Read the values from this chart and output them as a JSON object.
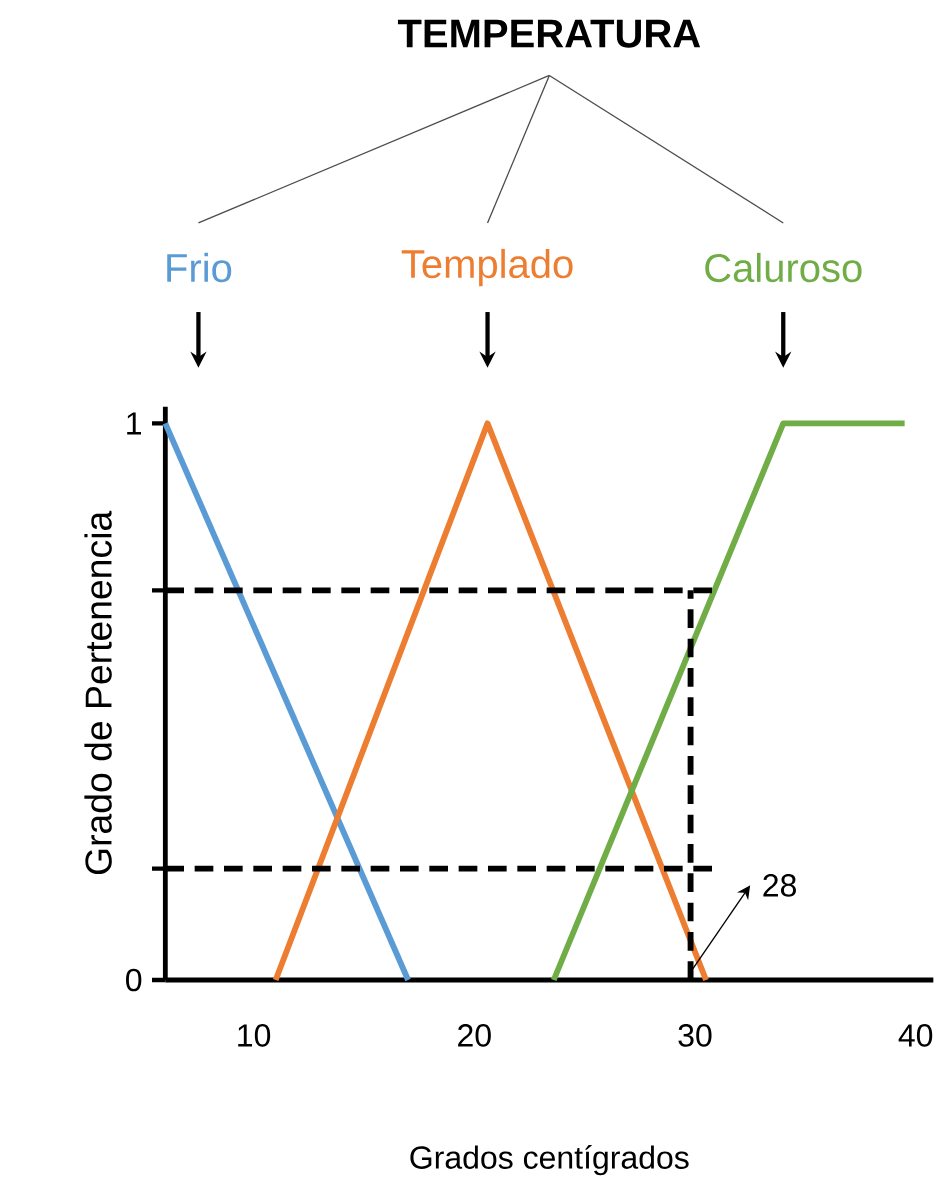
{
  "chart_data": {
    "type": "line",
    "title": "TEMPERATURA",
    "xlabel": "Grados centígrados",
    "ylabel": "Grado de Pertenencia",
    "xlim": [
      6,
      40.8
    ],
    "xticks": [
      10,
      20,
      30,
      40
    ],
    "ylim": [
      0,
      1.03
    ],
    "yticks": [
      0,
      {
        "value": 0.2,
        "label": null
      },
      {
        "value": 0.7,
        "label": null
      },
      1
    ],
    "marker": "none",
    "series": [
      {
        "name": "Frio",
        "color": "#5b9bd5",
        "x": [
          6,
          17
        ],
        "values": [
          1,
          0
        ]
      },
      {
        "name": "Templado",
        "color": "#ed7d31",
        "x": [
          11,
          20.6,
          30.5
        ],
        "values": [
          0,
          1,
          0
        ]
      },
      {
        "name": "Caluroso",
        "color": "#70ad47",
        "x": [
          23.6,
          34,
          39.5
        ],
        "values": [
          0,
          1,
          1
        ]
      },
      {
        "color": "#000000",
        "line_style": "dashed",
        "x": [
          6,
          30.8
        ],
        "values": [
          0.7,
          0.7
        ]
      },
      {
        "color": "#000000",
        "line_style": "dashed",
        "x": [
          6,
          30.8
        ],
        "values": [
          0.2,
          0.2
        ]
      },
      {
        "color": "#000000",
        "line_style": "dashed",
        "x": [
          29.8,
          29.8
        ],
        "values": [
          0,
          0.7
        ]
      }
    ],
    "annotations": [
      {
        "text": "28",
        "x": 29.8,
        "y": 0
      }
    ]
  }
}
